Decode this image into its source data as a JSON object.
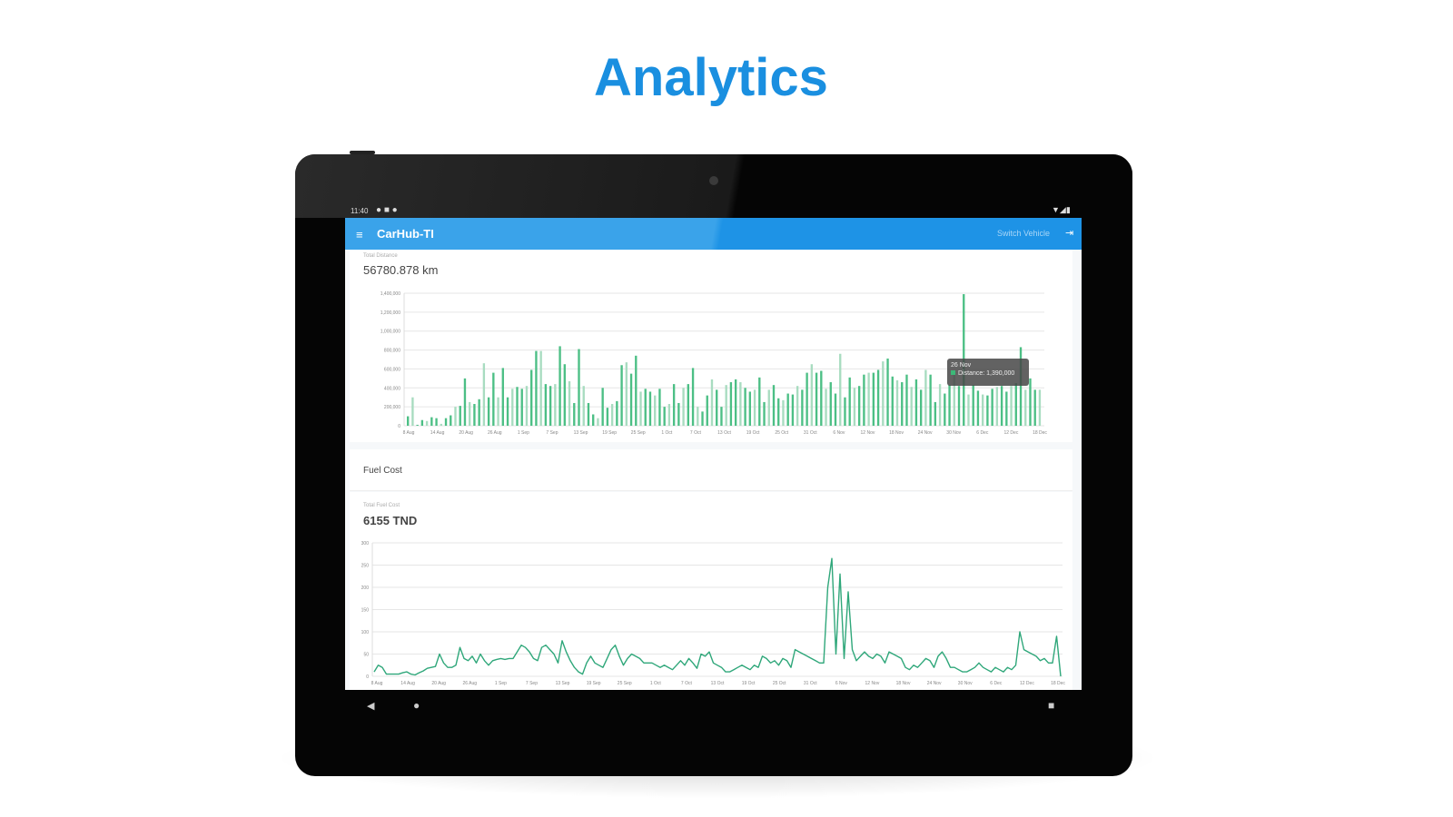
{
  "headline": "Analytics",
  "status_bar": {
    "time": "11:40"
  },
  "app_bar": {
    "title": "CarHub-TI",
    "action_label": "Switch Vehicle",
    "menu_icon": "menu-icon",
    "exit_icon": "exit-icon"
  },
  "colors": {
    "accent": "#1e93e6",
    "headline": "#1a8fe0",
    "series": "#3cb878"
  },
  "distance": {
    "label": "Total Distance",
    "value": "56780.878 km",
    "tooltip": {
      "title": "26 Nov",
      "text": "Distance: 1,390,000"
    }
  },
  "fuel": {
    "section_title": "Fuel Cost",
    "label": "Total Fuel Cost",
    "value": "6155 TND"
  },
  "chart_data": [
    {
      "type": "bar",
      "ylim": [
        0,
        1400000
      ],
      "y_ticks": [
        "1,400,000",
        "1,200,000",
        "1,000,000",
        "800,000",
        "600,000",
        "400,000",
        "200,000",
        "0"
      ],
      "x_ticks": [
        "8 Aug",
        "14 Aug",
        "20 Aug",
        "26 Aug",
        "1 Sep",
        "7 Sep",
        "13 Sep",
        "19 Sep",
        "25 Sep",
        "1 Oct",
        "7 Oct",
        "13 Oct",
        "19 Oct",
        "25 Oct",
        "31 Oct",
        "6 Nov",
        "12 Nov",
        "18 Nov",
        "24 Nov",
        "30 Nov",
        "6 Dec",
        "12 Dec",
        "18 Dec"
      ],
      "grid": true,
      "values": [
        100000,
        300000,
        10000,
        60000,
        50000,
        90000,
        80000,
        20000,
        80000,
        110000,
        200000,
        210000,
        500000,
        250000,
        230000,
        280000,
        660000,
        300000,
        560000,
        300000,
        610000,
        300000,
        390000,
        410000,
        390000,
        420000,
        590000,
        790000,
        790000,
        440000,
        420000,
        440000,
        840000,
        650000,
        470000,
        240000,
        810000,
        420000,
        240000,
        120000,
        80000,
        400000,
        190000,
        230000,
        260000,
        640000,
        670000,
        550000,
        740000,
        360000,
        390000,
        360000,
        320000,
        390000,
        200000,
        230000,
        440000,
        240000,
        400000,
        440000,
        610000,
        200000,
        150000,
        320000,
        490000,
        380000,
        200000,
        430000,
        460000,
        490000,
        460000,
        400000,
        360000,
        380000,
        510000,
        250000,
        380000,
        430000,
        290000,
        270000,
        340000,
        330000,
        420000,
        380000,
        560000,
        650000,
        560000,
        580000,
        390000,
        460000,
        340000,
        760000,
        300000,
        510000,
        400000,
        420000,
        540000,
        560000,
        560000,
        590000,
        680000,
        710000,
        520000,
        480000,
        460000,
        540000,
        410000,
        490000,
        380000,
        590000,
        540000,
        250000,
        440000,
        340000,
        430000,
        580000,
        420000,
        1390000,
        330000,
        430000,
        370000,
        330000,
        320000,
        390000,
        410000,
        420000,
        360000,
        420000,
        450000,
        830000,
        380000,
        500000,
        380000,
        380000
      ]
    },
    {
      "type": "line",
      "ylim": [
        0,
        300
      ],
      "y_ticks": [
        "300",
        "250",
        "200",
        "150",
        "100",
        "50",
        "0"
      ],
      "x_ticks": [
        "8 Aug",
        "14 Aug",
        "20 Aug",
        "26 Aug",
        "1 Sep",
        "7 Sep",
        "13 Sep",
        "19 Sep",
        "25 Sep",
        "1 Oct",
        "7 Oct",
        "13 Oct",
        "19 Oct",
        "25 Oct",
        "31 Oct",
        "6 Nov",
        "12 Nov",
        "18 Nov",
        "24 Nov",
        "30 Nov",
        "6 Dec",
        "12 Dec",
        "18 Dec"
      ],
      "grid": true,
      "values": [
        10,
        25,
        20,
        5,
        5,
        5,
        5,
        8,
        10,
        5,
        3,
        8,
        12,
        18,
        20,
        22,
        50,
        30,
        20,
        20,
        25,
        65,
        40,
        35,
        45,
        30,
        50,
        35,
        25,
        35,
        38,
        40,
        38,
        40,
        40,
        55,
        70,
        65,
        55,
        40,
        35,
        65,
        70,
        60,
        50,
        30,
        80,
        55,
        35,
        20,
        10,
        5,
        30,
        45,
        30,
        25,
        20,
        40,
        60,
        70,
        45,
        25,
        40,
        50,
        45,
        40,
        30,
        30,
        30,
        25,
        20,
        25,
        20,
        15,
        25,
        35,
        25,
        40,
        30,
        18,
        50,
        45,
        55,
        30,
        25,
        20,
        10,
        10,
        15,
        20,
        25,
        20,
        15,
        25,
        20,
        45,
        40,
        30,
        35,
        25,
        40,
        35,
        20,
        60,
        55,
        50,
        45,
        40,
        35,
        30,
        30,
        200,
        265,
        50,
        230,
        40,
        190,
        60,
        35,
        45,
        55,
        45,
        40,
        50,
        45,
        30,
        55,
        50,
        45,
        40,
        20,
        15,
        25,
        20,
        30,
        40,
        35,
        20,
        45,
        55,
        40,
        20,
        20,
        15,
        10,
        10,
        15,
        20,
        30,
        20,
        15,
        10,
        20,
        15,
        10,
        20,
        15,
        25,
        100,
        60,
        55,
        50,
        45,
        35,
        40,
        30,
        30,
        90,
        0
      ]
    }
  ]
}
